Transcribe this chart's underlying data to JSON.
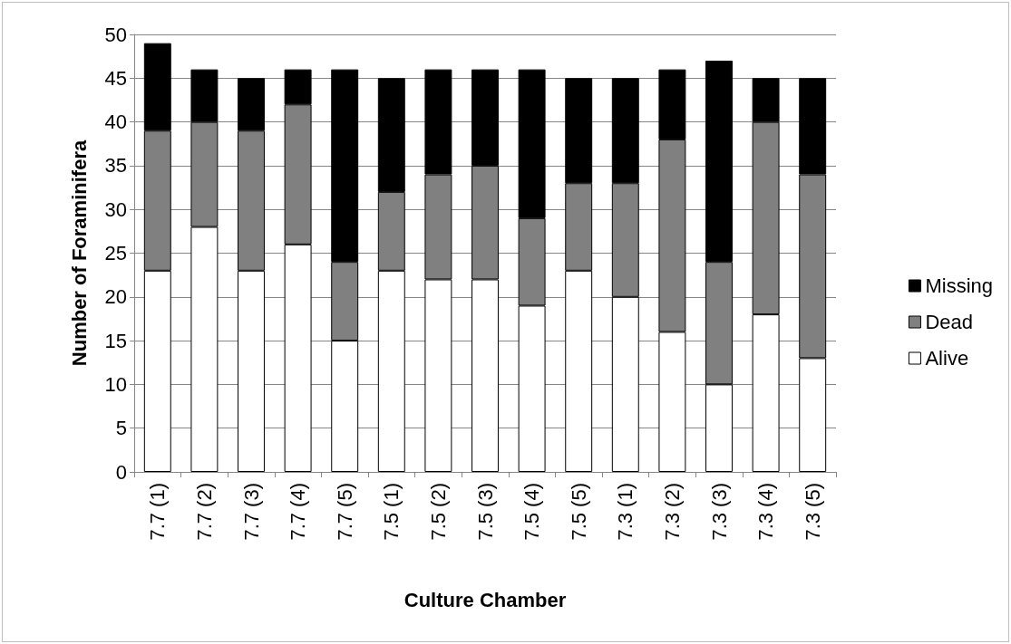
{
  "chart_data": {
    "type": "bar",
    "stacked": true,
    "xlabel": "Culture Chamber",
    "ylabel": "Number of Foraminifera",
    "categories": [
      "7.7 (1)",
      "7.7 (2)",
      "7.7 (3)",
      "7.7 (4)",
      "7.7 (5)",
      "7.5 (1)",
      "7.5 (2)",
      "7.5 (3)",
      "7.5 (4)",
      "7.5 (5)",
      "7.3 (1)",
      "7.3 (2)",
      "7.3 (3)",
      "7.3 (4)",
      "7.3 (5)"
    ],
    "series": [
      {
        "name": "Alive",
        "color": "#ffffff",
        "values": [
          23,
          28,
          23,
          26,
          15,
          23,
          22,
          22,
          19,
          23,
          20,
          16,
          10,
          18,
          13
        ]
      },
      {
        "name": "Dead",
        "color": "#808080",
        "values": [
          16,
          12,
          16,
          16,
          9,
          9,
          12,
          13,
          10,
          10,
          13,
          22,
          14,
          22,
          21
        ]
      },
      {
        "name": "Missing",
        "color": "#000000",
        "values": [
          10,
          6,
          6,
          4,
          22,
          13,
          12,
          11,
          17,
          12,
          12,
          8,
          23,
          5,
          11
        ]
      }
    ],
    "ylim": [
      0,
      50
    ],
    "yticks": [
      0,
      5,
      10,
      15,
      20,
      25,
      30,
      35,
      40,
      45,
      50
    ],
    "grid": "y",
    "legend": "right"
  }
}
